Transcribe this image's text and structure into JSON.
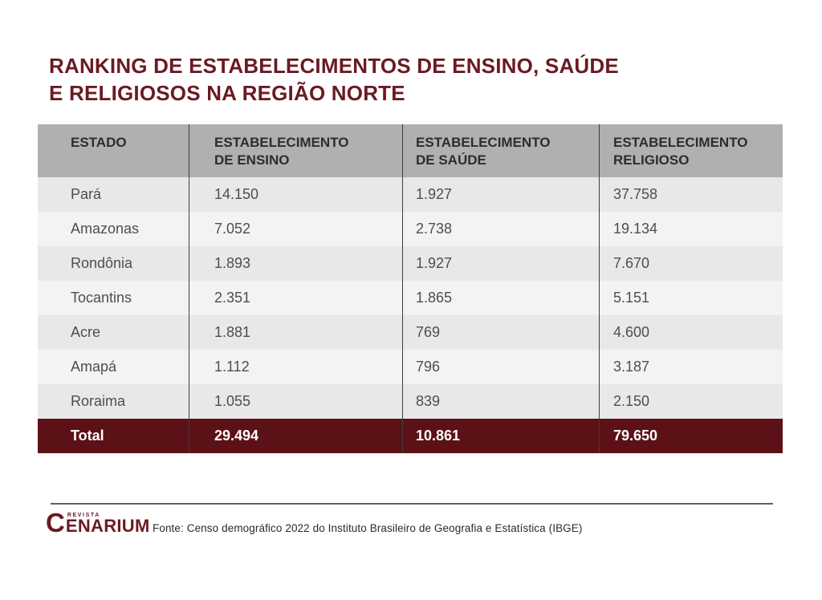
{
  "title": {
    "line1": "RANKING DE ESTABELECIMENTOS DE ENSINO, SAÚDE",
    "line2": "E RELIGIOSOS NA REGIÃO NORTE",
    "color": "#6b1a23"
  },
  "table": {
    "columns": [
      {
        "label": "ESTADO"
      },
      {
        "label": "ESTABELECIMENTO\nDE ENSINO"
      },
      {
        "label": "ESTABELECIMENTO\nDE SAÚDE"
      },
      {
        "label": "ESTABELECIMENTO\nRELIGIOSO"
      }
    ],
    "rows": [
      {
        "state": "Pará",
        "ensino": "14.150",
        "saude": "1.927",
        "religioso": "37.758"
      },
      {
        "state": "Amazonas",
        "ensino": "7.052",
        "saude": "2.738",
        "religioso": "19.134"
      },
      {
        "state": "Rondônia",
        "ensino": "1.893",
        "saude": "1.927",
        "religioso": "7.670"
      },
      {
        "state": "Tocantins",
        "ensino": "2.351",
        "saude": "1.865",
        "religioso": "5.151"
      },
      {
        "state": "Acre",
        "ensino": "1.881",
        "saude": "769",
        "religioso": "4.600"
      },
      {
        "state": "Amapá",
        "ensino": "1.112",
        "saude": "796",
        "religioso": "3.187"
      },
      {
        "state": "Roraima",
        "ensino": "1.055",
        "saude": "839",
        "religioso": "2.150"
      }
    ],
    "total_row": {
      "state": "Total",
      "ensino": "29.494",
      "saude": "10.861",
      "religioso": "79.650"
    },
    "colors": {
      "header_bg": "#b0b0ae",
      "row_odd": "#e8e8e8",
      "row_even": "#f3f3f2",
      "total_bg": "#5c1117",
      "divider": "#3e3e3e",
      "accent": "#6b1a23"
    }
  },
  "footer": {
    "logo": {
      "c": "C",
      "revista": "REVISTA",
      "rest": "ENARIUM"
    },
    "source": "Fonte: Censo demográfico 2022 do Instituto Brasileiro de Geografia e Estatística (IBGE)"
  },
  "chart_data": {
    "type": "table",
    "title": "RANKING DE ESTABELECIMENTOS DE ENSINO, SAÚDE E RELIGIOSOS NA REGIÃO NORTE",
    "columns": [
      "ESTADO",
      "ESTABELECIMENTO DE ENSINO",
      "ESTABELECIMENTO DE SAÚDE",
      "ESTABELECIMENTO RELIGIOSO"
    ],
    "rows": [
      [
        "Pará",
        14150,
        1927,
        37758
      ],
      [
        "Amazonas",
        7052,
        2738,
        19134
      ],
      [
        "Rondônia",
        1893,
        1927,
        7670
      ],
      [
        "Tocantins",
        2351,
        1865,
        5151
      ],
      [
        "Acre",
        1881,
        769,
        4600
      ],
      [
        "Amapá",
        1112,
        796,
        3187
      ],
      [
        "Roraima",
        1055,
        839,
        2150
      ]
    ],
    "total": [
      "Total",
      29494,
      10861,
      79650
    ],
    "source": "Fonte: Censo demográfico 2022 do Instituto Brasileiro de Geografia e Estatística (IBGE)"
  }
}
